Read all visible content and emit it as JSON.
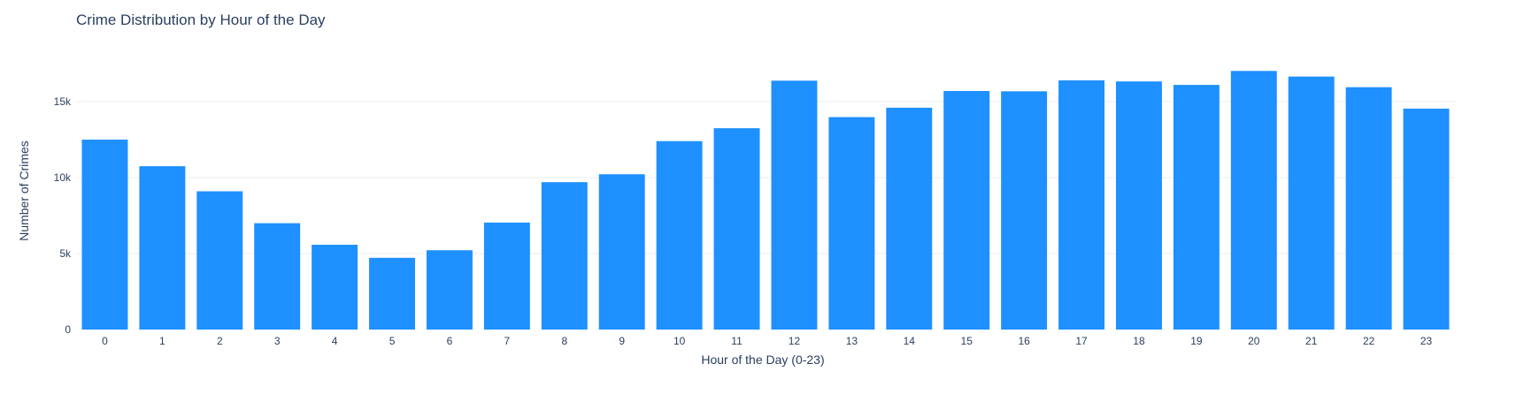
{
  "chart_data": {
    "type": "bar",
    "title": "Crime Distribution by Hour of the Day",
    "xlabel": "Hour of the Day (0-23)",
    "ylabel": "Number of Crimes",
    "categories": [
      "0",
      "1",
      "2",
      "3",
      "4",
      "5",
      "6",
      "7",
      "8",
      "9",
      "10",
      "11",
      "12",
      "13",
      "14",
      "15",
      "16",
      "17",
      "18",
      "19",
      "20",
      "21",
      "22",
      "23"
    ],
    "values": [
      12500,
      10750,
      9100,
      7000,
      5580,
      4720,
      5220,
      7040,
      9700,
      10220,
      12400,
      13250,
      16380,
      13980,
      14600,
      15700,
      15680,
      16400,
      16330,
      16100,
      17020,
      16650,
      15950,
      14540
    ],
    "ylim": [
      0,
      18200
    ],
    "yticks": [
      0,
      5000,
      10000,
      15000
    ],
    "ytick_labels": [
      "0",
      "5k",
      "10k",
      "15k"
    ],
    "grid": true,
    "bar_color": "#1E90FF"
  }
}
